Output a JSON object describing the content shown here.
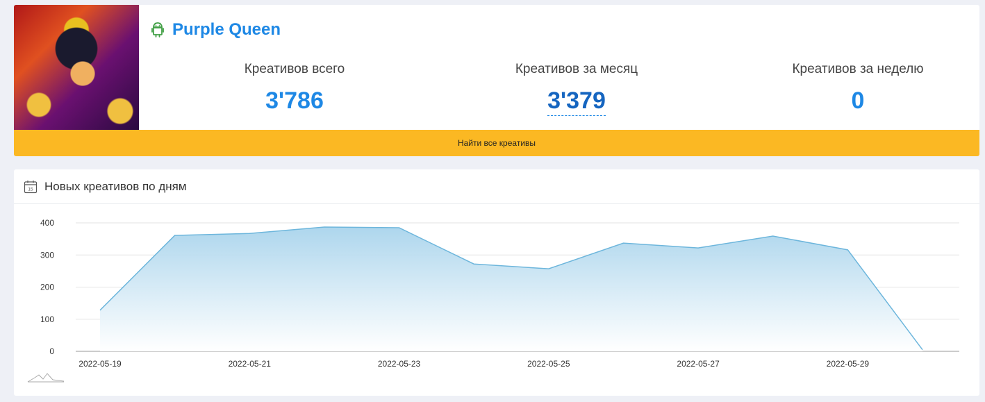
{
  "app": {
    "name": "Purple Queen",
    "platform_icon": "android-icon"
  },
  "stats": [
    {
      "label": "Креативов всего",
      "value": "3'786"
    },
    {
      "label": "Креативов за месяц",
      "value": "3'379"
    },
    {
      "label": "Креативов за неделю",
      "value": "0"
    }
  ],
  "find_button_label": "Найти все креативы",
  "chart_section": {
    "title": "Новых креативов по дням",
    "icon": "calendar-icon"
  },
  "colors": {
    "accent": "#1e88e5",
    "button": "#fbb823",
    "line": "#6db6dc"
  },
  "chart_data": {
    "type": "area",
    "x": [
      "2022-05-19",
      "2022-05-20",
      "2022-05-21",
      "2022-05-22",
      "2022-05-23",
      "2022-05-24",
      "2022-05-25",
      "2022-05-26",
      "2022-05-27",
      "2022-05-28",
      "2022-05-29",
      "2022-05-30"
    ],
    "x_tick_labels": [
      "2022-05-19",
      "2022-05-21",
      "2022-05-23",
      "2022-05-25",
      "2022-05-27",
      "2022-05-29"
    ],
    "values": [
      128,
      361,
      367,
      387,
      385,
      272,
      257,
      337,
      322,
      359,
      316,
      5
    ],
    "y_ticks": [
      0,
      100,
      200,
      300,
      400
    ],
    "ylim": [
      0,
      400
    ],
    "grid": true,
    "legend": "none"
  }
}
